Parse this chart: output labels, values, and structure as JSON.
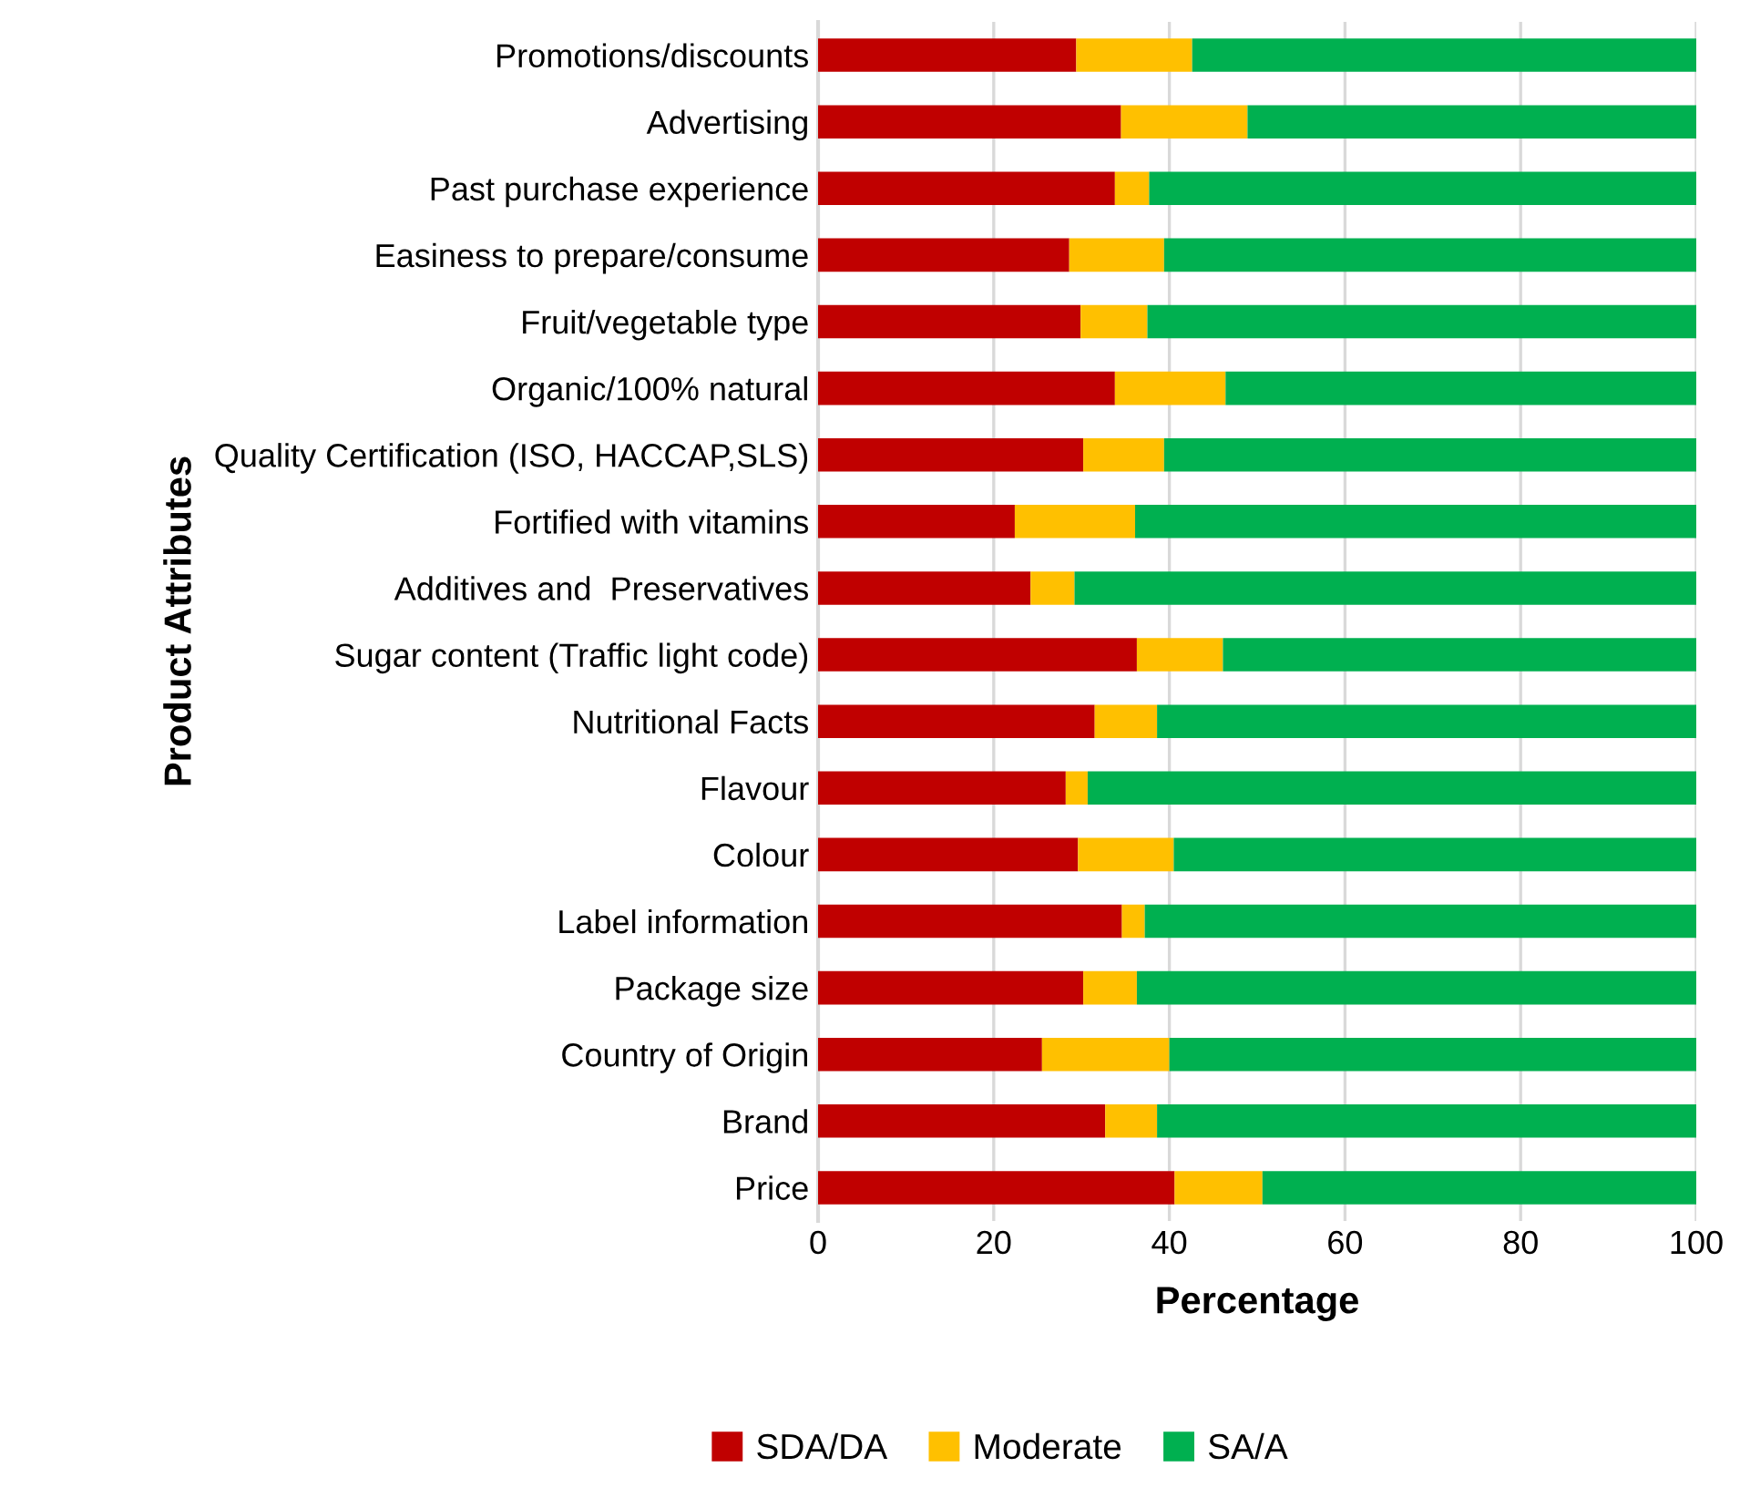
{
  "chart_data": {
    "type": "bar",
    "orientation": "horizontal",
    "stacked": true,
    "xlabel": "Percentage",
    "ylabel": "Product Attributes",
    "categories": [
      "Promotions/discounts",
      "Advertising",
      "Past purchase experience",
      "Easiness to prepare/consume",
      "Fruit/vegetable type",
      "Organic/100% natural",
      "Quality Certification (ISO, HACCAP,SLS)",
      "Fortified with vitamins",
      "Additives and  Preservatives",
      "Sugar content (Traffic light code)",
      "Nutritional Facts",
      "Flavour",
      "Colour",
      "Label information",
      "Package size",
      "Country of Origin",
      "Brand",
      "Price"
    ],
    "series": [
      {
        "name": "SDA/DA",
        "color": "#c00000",
        "values": [
          29.4,
          34.5,
          33.8,
          28.6,
          29.9,
          33.8,
          30.2,
          22.4,
          24.2,
          36.3,
          31.5,
          28.2,
          29.6,
          34.6,
          30.2,
          25.5,
          32.7,
          40.6
        ]
      },
      {
        "name": "Moderate",
        "color": "#ffc000",
        "values": [
          13.2,
          14.4,
          3.9,
          10.8,
          7.6,
          12.6,
          9.2,
          13.7,
          5.0,
          9.8,
          7.1,
          2.5,
          10.9,
          2.6,
          6.1,
          14.5,
          5.9,
          10.0
        ]
      },
      {
        "name": "SA/A",
        "color": "#00b050",
        "values": [
          57.4,
          51.1,
          62.3,
          60.6,
          62.5,
          53.6,
          60.6,
          63.9,
          70.8,
          53.9,
          61.4,
          69.3,
          59.5,
          62.8,
          63.7,
          60.0,
          61.4,
          49.4
        ]
      }
    ],
    "xlim": [
      0,
      100
    ],
    "xticks": [
      0,
      20,
      40,
      60,
      80,
      100
    ],
    "grid": "x",
    "legend": "bottom"
  }
}
